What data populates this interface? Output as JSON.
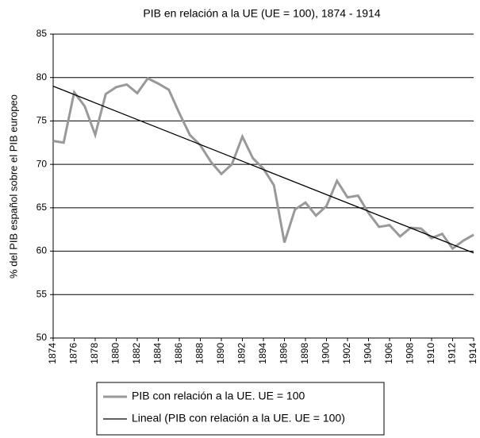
{
  "chart_data": {
    "type": "line",
    "title": "PIB en relación a la UE (UE = 100), 1874 - 1914",
    "y_label": "% del PIB español sobre el PIB europeo",
    "x": [
      1874,
      1875,
      1876,
      1877,
      1878,
      1879,
      1880,
      1881,
      1882,
      1883,
      1884,
      1885,
      1886,
      1887,
      1888,
      1889,
      1890,
      1891,
      1892,
      1893,
      1894,
      1895,
      1896,
      1897,
      1898,
      1899,
      1900,
      1901,
      1902,
      1903,
      1904,
      1905,
      1906,
      1907,
      1908,
      1909,
      1910,
      1911,
      1912,
      1913,
      1914
    ],
    "series": [
      {
        "name": "PIB con relación a la UE. UE = 100",
        "color": "#999999",
        "values": [
          72.7,
          72.5,
          78.3,
          76.7,
          73.4,
          78.1,
          78.9,
          79.2,
          78.2,
          79.9,
          79.3,
          78.6,
          75.9,
          73.4,
          72.2,
          70.3,
          68.9,
          70.0,
          73.2,
          70.7,
          69.5,
          67.6,
          61.0,
          64.8,
          65.6,
          64.1,
          65.2,
          68.1,
          66.2,
          66.4,
          64.4,
          62.8,
          63.0,
          61.7,
          62.7,
          62.6,
          61.5,
          62.0,
          60.3,
          61.2,
          61.9
        ]
      },
      {
        "name": "Lineal (PIB con relación a la UE. UE = 100)",
        "color": "#000000",
        "values": [
          79,
          78.52,
          78.04,
          77.56,
          77.08,
          76.6,
          76.12,
          75.64,
          75.16,
          74.68,
          74.2,
          73.72,
          73.24,
          72.76,
          72.28,
          71.8,
          71.32,
          70.84,
          70.36,
          69.88,
          69.4,
          68.92,
          68.44,
          67.96,
          67.48,
          67,
          66.52,
          66.04,
          65.56,
          65.08,
          64.6,
          64.12,
          63.64,
          63.16,
          62.68,
          62.2,
          61.72,
          61.24,
          60.76,
          60.28,
          59.8
        ]
      }
    ],
    "xlim": [
      1874,
      1914
    ],
    "xticks": [
      1874,
      1876,
      1878,
      1880,
      1882,
      1884,
      1886,
      1888,
      1890,
      1892,
      1894,
      1896,
      1898,
      1900,
      1902,
      1904,
      1906,
      1908,
      1910,
      1912,
      1914
    ],
    "ylim": [
      50,
      85
    ],
    "yticks": [
      50,
      55,
      60,
      65,
      70,
      75,
      80,
      85
    ],
    "grid": true,
    "legend": "bottom"
  }
}
